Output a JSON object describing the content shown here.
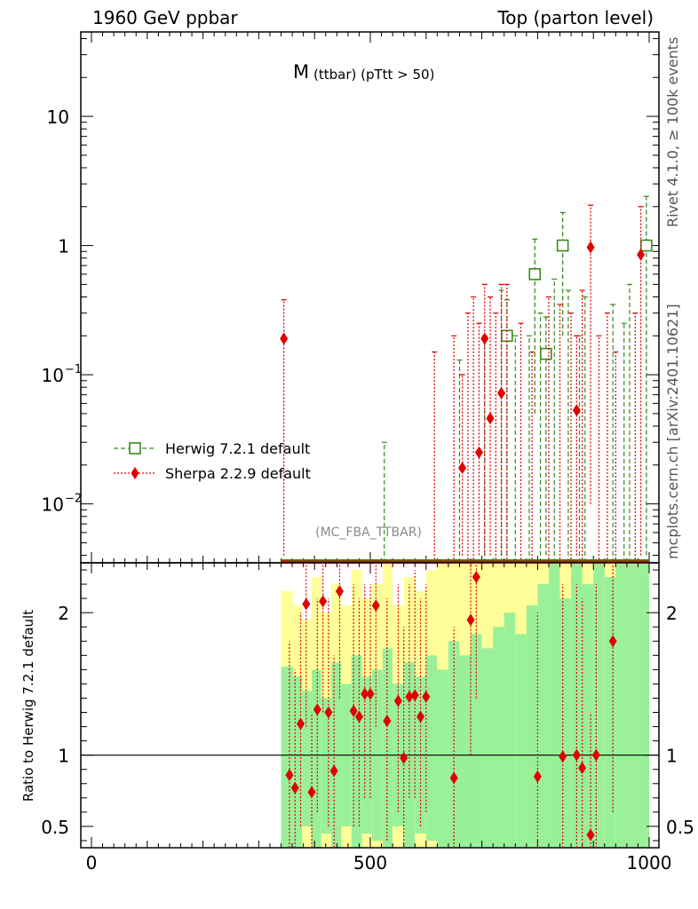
{
  "header": {
    "energy_label": "1960 GeV ppbar",
    "process_label": "Top (parton level)"
  },
  "side_labels": {
    "rivet": "Rivet 4.1.0, ≥ 100k events",
    "source": "mcplots.cern.ch [arXiv:2401.10621]"
  },
  "chart_data": {
    "type": "scatter",
    "title": "M",
    "title_subscript": "(ttbar) (pTtt > 50)",
    "analysis_label": "(MC_FBA_TTBAR)",
    "x_ticks": [
      "0",
      "500",
      "1000"
    ],
    "xlim": [
      -20,
      1020
    ],
    "main": {
      "yscale": "log",
      "ylim": [
        0.0035,
        45
      ],
      "y_ticks": [
        {
          "value": 10,
          "base": "10",
          "exp": ""
        },
        {
          "value": 1,
          "base": "1",
          "exp": ""
        },
        {
          "value": 0.1,
          "base": "10",
          "exp": "−1"
        },
        {
          "value": 0.01,
          "base": "10",
          "exp": "−2"
        }
      ],
      "series": [
        {
          "name": "Herwig 7.2.1 default",
          "color": "#3a8a1a",
          "marker": "open-square",
          "style": "dashed",
          "points": [
            {
              "x": 745,
              "y": 0.2,
              "lo": 0.004,
              "hi": 0.38
            },
            {
              "x": 795,
              "y": 0.6,
              "lo": 0.05,
              "hi": 1.12
            },
            {
              "x": 815,
              "y": 0.145,
              "lo": 0.004,
              "hi": 0.28
            },
            {
              "x": 845,
              "y": 1.0,
              "lo": 0.2,
              "hi": 1.8
            },
            {
              "x": 995,
              "y": 1.0,
              "lo": 0.004,
              "hi": 2.4
            }
          ],
          "spikes": [
            {
              "x": 525,
              "hi": 0.03
            },
            {
              "x": 660,
              "hi": 0.13
            },
            {
              "x": 705,
              "hi": 0.2
            },
            {
              "x": 735,
              "hi": 0.45
            },
            {
              "x": 760,
              "hi": 0.2
            },
            {
              "x": 785,
              "hi": 0.2
            },
            {
              "x": 805,
              "hi": 0.3
            },
            {
              "x": 830,
              "hi": 0.55
            },
            {
              "x": 855,
              "hi": 0.45
            },
            {
              "x": 875,
              "hi": 0.2
            },
            {
              "x": 885,
              "hi": 0.4
            },
            {
              "x": 935,
              "hi": 0.35
            },
            {
              "x": 955,
              "hi": 0.25
            },
            {
              "x": 965,
              "hi": 0.5
            }
          ]
        },
        {
          "name": "Sherpa 2.2.9 default",
          "color": "#e00000",
          "marker": "filled-diamond",
          "style": "dotted",
          "points": [
            {
              "x": 345,
              "y": 0.19,
              "lo": 0.004,
              "hi": 0.38
            },
            {
              "x": 665,
              "y": 0.019,
              "lo": 0.004,
              "hi": 0.1
            },
            {
              "x": 695,
              "y": 0.025,
              "lo": 0.004,
              "hi": 0.25
            },
            {
              "x": 705,
              "y": 0.19,
              "lo": 0.004,
              "hi": 0.5
            },
            {
              "x": 715,
              "y": 0.046,
              "lo": 0.004,
              "hi": 0.4
            },
            {
              "x": 735,
              "y": 0.072,
              "lo": 0.004,
              "hi": 0.5
            },
            {
              "x": 870,
              "y": 0.053,
              "lo": 0.004,
              "hi": 0.2
            },
            {
              "x": 895,
              "y": 0.97,
              "lo": 0.01,
              "hi": 2.05
            },
            {
              "x": 985,
              "y": 0.85,
              "lo": 0.004,
              "hi": 2.0
            }
          ],
          "spikes": [
            {
              "x": 615,
              "hi": 0.15
            },
            {
              "x": 650,
              "hi": 0.2
            },
            {
              "x": 675,
              "hi": 0.3
            },
            {
              "x": 685,
              "hi": 0.4
            },
            {
              "x": 725,
              "hi": 0.3
            },
            {
              "x": 745,
              "hi": 0.5
            },
            {
              "x": 770,
              "hi": 0.25
            },
            {
              "x": 790,
              "hi": 0.15
            },
            {
              "x": 820,
              "hi": 0.4
            },
            {
              "x": 840,
              "hi": 0.35
            },
            {
              "x": 860,
              "hi": 0.3
            },
            {
              "x": 880,
              "hi": 0.45
            },
            {
              "x": 910,
              "hi": 0.2
            },
            {
              "x": 925,
              "hi": 0.3
            },
            {
              "x": 940,
              "hi": 0.15
            },
            {
              "x": 975,
              "hi": 0.3
            }
          ]
        }
      ]
    },
    "ratio": {
      "ylabel": "Ratio to Herwig 7.2.1 default",
      "ylim": [
        0.35,
        2.35
      ],
      "y_ticks": [
        "0.5",
        "1",
        "2"
      ],
      "reference": 1,
      "band_colors": {
        "inner": "#99f099",
        "outer": "#ffff99"
      },
      "bands": [
        {
          "x0": 340,
          "x1": 362,
          "lo1": 0.35,
          "hi1": 1.62,
          "lo2": 0.35,
          "hi2": 2.15
        },
        {
          "x0": 362,
          "x1": 378,
          "lo1": 0.35,
          "hi1": 1.55,
          "lo2": 0.35,
          "hi2": 2.05
        },
        {
          "x0": 378,
          "x1": 395,
          "lo1": 0.5,
          "hi1": 1.45,
          "lo2": 0.35,
          "hi2": 1.95
        },
        {
          "x0": 395,
          "x1": 412,
          "lo1": 0.35,
          "hi1": 1.6,
          "lo2": 0.35,
          "hi2": 2.25
        },
        {
          "x0": 412,
          "x1": 430,
          "lo1": 0.45,
          "hi1": 1.4,
          "lo2": 0.35,
          "hi2": 2.0
        },
        {
          "x0": 430,
          "x1": 448,
          "lo1": 0.35,
          "hi1": 1.65,
          "lo2": 0.35,
          "hi2": 2.2
        },
        {
          "x0": 448,
          "x1": 466,
          "lo1": 0.5,
          "hi1": 1.5,
          "lo2": 0.35,
          "hi2": 2.05
        },
        {
          "x0": 466,
          "x1": 485,
          "lo1": 0.35,
          "hi1": 1.7,
          "lo2": 0.35,
          "hi2": 2.3
        },
        {
          "x0": 485,
          "x1": 503,
          "lo1": 0.45,
          "hi1": 1.55,
          "lo2": 0.35,
          "hi2": 2.1
        },
        {
          "x0": 503,
          "x1": 522,
          "lo1": 0.4,
          "hi1": 1.6,
          "lo2": 0.35,
          "hi2": 2.2
        },
        {
          "x0": 522,
          "x1": 540,
          "lo1": 0.35,
          "hi1": 1.75,
          "lo2": 0.35,
          "hi2": 2.35
        },
        {
          "x0": 540,
          "x1": 560,
          "lo1": 0.5,
          "hi1": 1.5,
          "lo2": 0.35,
          "hi2": 2.05
        },
        {
          "x0": 560,
          "x1": 580,
          "lo1": 0.35,
          "hi1": 1.65,
          "lo2": 0.35,
          "hi2": 2.25
        },
        {
          "x0": 580,
          "x1": 600,
          "lo1": 0.45,
          "hi1": 1.55,
          "lo2": 0.35,
          "hi2": 2.15
        },
        {
          "x0": 600,
          "x1": 620,
          "lo1": 0.4,
          "hi1": 1.7,
          "lo2": 0.35,
          "hi2": 2.3
        },
        {
          "x0": 620,
          "x1": 640,
          "lo1": 0.35,
          "hi1": 1.6,
          "lo2": 0.35,
          "hi2": 2.35
        },
        {
          "x0": 640,
          "x1": 660,
          "lo1": 0.35,
          "hi1": 1.8,
          "lo2": 0.35,
          "hi2": 2.35
        },
        {
          "x0": 660,
          "x1": 680,
          "lo1": 0.35,
          "hi1": 1.7,
          "lo2": 0.35,
          "hi2": 2.35
        },
        {
          "x0": 680,
          "x1": 700,
          "lo1": 0.35,
          "hi1": 1.85,
          "lo2": 0.35,
          "hi2": 2.35
        },
        {
          "x0": 700,
          "x1": 720,
          "lo1": 0.35,
          "hi1": 1.75,
          "lo2": 0.35,
          "hi2": 2.35
        },
        {
          "x0": 720,
          "x1": 740,
          "lo1": 0.35,
          "hi1": 1.9,
          "lo2": 0.35,
          "hi2": 2.35
        },
        {
          "x0": 740,
          "x1": 760,
          "lo1": 0.35,
          "hi1": 2.0,
          "lo2": 0.35,
          "hi2": 2.35
        },
        {
          "x0": 760,
          "x1": 780,
          "lo1": 0.35,
          "hi1": 1.85,
          "lo2": 0.35,
          "hi2": 2.35
        },
        {
          "x0": 780,
          "x1": 800,
          "lo1": 0.35,
          "hi1": 2.05,
          "lo2": 0.35,
          "hi2": 2.35
        },
        {
          "x0": 800,
          "x1": 820,
          "lo1": 0.35,
          "hi1": 2.2,
          "lo2": 0.35,
          "hi2": 2.35
        },
        {
          "x0": 820,
          "x1": 840,
          "lo1": 0.35,
          "hi1": 2.35,
          "lo2": 0.35,
          "hi2": 2.35
        },
        {
          "x0": 840,
          "x1": 860,
          "lo1": 0.35,
          "hi1": 2.1,
          "lo2": 0.35,
          "hi2": 2.35
        },
        {
          "x0": 860,
          "x1": 880,
          "lo1": 0.35,
          "hi1": 2.35,
          "lo2": 0.35,
          "hi2": 2.35
        },
        {
          "x0": 880,
          "x1": 900,
          "lo1": 0.35,
          "hi1": 2.2,
          "lo2": 0.35,
          "hi2": 2.35
        },
        {
          "x0": 900,
          "x1": 920,
          "lo1": 0.35,
          "hi1": 2.35,
          "lo2": 0.35,
          "hi2": 2.35
        },
        {
          "x0": 920,
          "x1": 940,
          "lo1": 0.35,
          "hi1": 2.25,
          "lo2": 0.35,
          "hi2": 2.35
        },
        {
          "x0": 940,
          "x1": 960,
          "lo1": 0.35,
          "hi1": 2.35,
          "lo2": 0.35,
          "hi2": 2.35
        },
        {
          "x0": 960,
          "x1": 980,
          "lo1": 0.35,
          "hi1": 2.35,
          "lo2": 0.35,
          "hi2": 2.35
        },
        {
          "x0": 980,
          "x1": 1000,
          "lo1": 0.35,
          "hi1": 2.35,
          "lo2": 0.35,
          "hi2": 2.35
        }
      ],
      "points": [
        {
          "x": 355,
          "y": 0.86,
          "lo": 0.35,
          "hi": 1.8
        },
        {
          "x": 365,
          "y": 0.77,
          "lo": 0.35,
          "hi": 1.6
        },
        {
          "x": 375,
          "y": 1.22,
          "lo": 0.5,
          "hi": 2.0
        },
        {
          "x": 385,
          "y": 2.06,
          "lo": 1.2,
          "hi": 2.35
        },
        {
          "x": 395,
          "y": 0.74,
          "lo": 0.35,
          "hi": 1.3
        },
        {
          "x": 405,
          "y": 1.32,
          "lo": 0.6,
          "hi": 2.1
        },
        {
          "x": 415,
          "y": 2.08,
          "lo": 1.3,
          "hi": 2.35
        },
        {
          "x": 425,
          "y": 1.3,
          "lo": 0.5,
          "hi": 2.1
        },
        {
          "x": 435,
          "y": 0.89,
          "lo": 0.35,
          "hi": 1.7
        },
        {
          "x": 445,
          "y": 2.15,
          "lo": 1.4,
          "hi": 2.35
        },
        {
          "x": 470,
          "y": 1.31,
          "lo": 0.5,
          "hi": 2.2
        },
        {
          "x": 480,
          "y": 1.27,
          "lo": 0.5,
          "hi": 2.1
        },
        {
          "x": 490,
          "y": 1.43,
          "lo": 0.7,
          "hi": 2.2
        },
        {
          "x": 500,
          "y": 1.43,
          "lo": 0.7,
          "hi": 2.2
        },
        {
          "x": 510,
          "y": 2.05,
          "lo": 1.2,
          "hi": 2.35
        },
        {
          "x": 530,
          "y": 1.24,
          "lo": 0.4,
          "hi": 2.1
        },
        {
          "x": 550,
          "y": 1.38,
          "lo": 0.6,
          "hi": 2.2
        },
        {
          "x": 560,
          "y": 0.98,
          "lo": 0.35,
          "hi": 1.9
        },
        {
          "x": 570,
          "y": 1.41,
          "lo": 0.7,
          "hi": 2.2
        },
        {
          "x": 580,
          "y": 1.42,
          "lo": 0.7,
          "hi": 2.3
        },
        {
          "x": 590,
          "y": 1.27,
          "lo": 0.5,
          "hi": 2.1
        },
        {
          "x": 600,
          "y": 1.41,
          "lo": 0.6,
          "hi": 2.2
        },
        {
          "x": 650,
          "y": 0.84,
          "lo": 0.35,
          "hi": 1.9
        },
        {
          "x": 680,
          "y": 1.95,
          "lo": 1.0,
          "hi": 2.35
        },
        {
          "x": 690,
          "y": 2.25,
          "lo": 1.4,
          "hi": 2.35
        },
        {
          "x": 800,
          "y": 0.85,
          "lo": 0.35,
          "hi": 2.0
        },
        {
          "x": 845,
          "y": 0.99,
          "lo": 0.35,
          "hi": 2.2
        },
        {
          "x": 870,
          "y": 1.0,
          "lo": 0.35,
          "hi": 2.2
        },
        {
          "x": 880,
          "y": 0.91,
          "lo": 0.35,
          "hi": 2.1
        },
        {
          "x": 895,
          "y": 0.44,
          "lo": 0.35,
          "hi": 1.3
        },
        {
          "x": 905,
          "y": 1.0,
          "lo": 0.35,
          "hi": 2.2
        },
        {
          "x": 935,
          "y": 1.8,
          "lo": 0.6,
          "hi": 2.35
        }
      ]
    }
  }
}
